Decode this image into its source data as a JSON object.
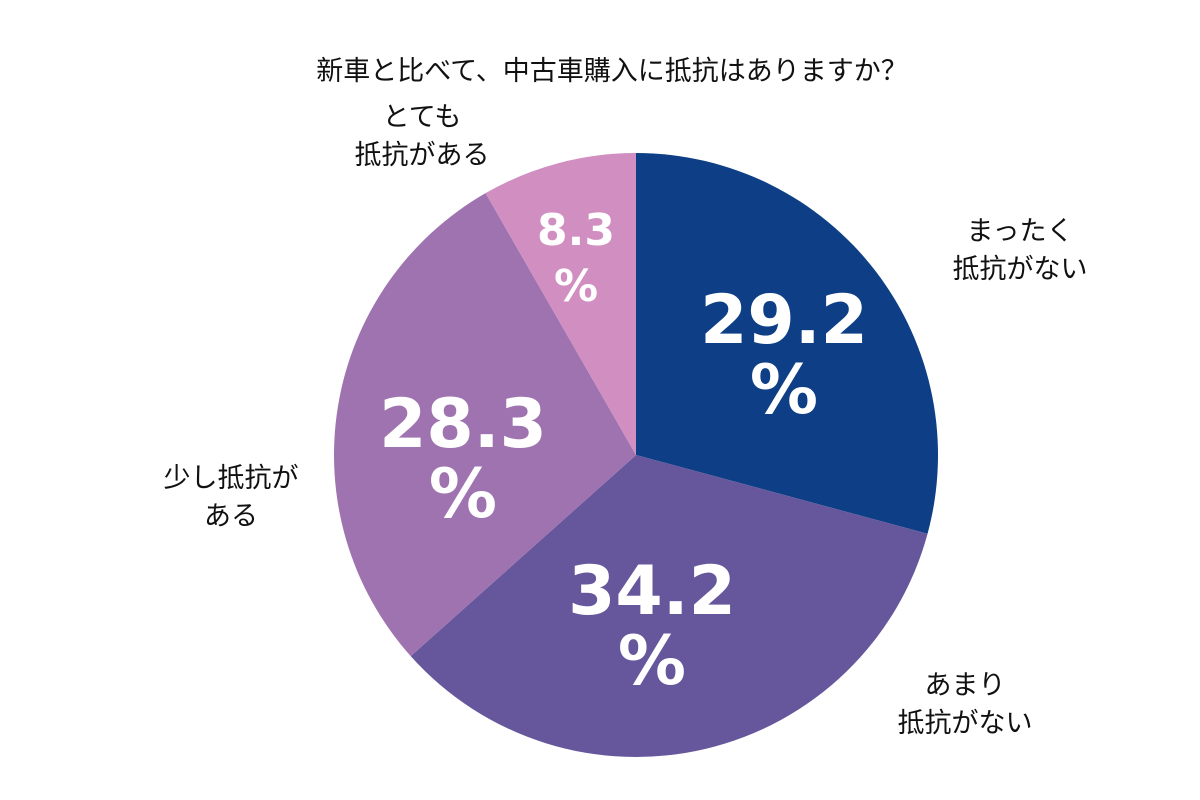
{
  "chart_data": {
    "type": "pie",
    "title": "新車と比べて、中古車購入に抵抗はありますか？",
    "start_angle_deg": 0,
    "direction": "clockwise",
    "slices": [
      {
        "label_lines": [
          "まったく",
          "抵抗がない"
        ],
        "value": 29.2,
        "value_text": "29.2",
        "unit": "%",
        "color": "#0e3f86"
      },
      {
        "label_lines": [
          "あまり",
          "抵抗がない"
        ],
        "value": 34.2,
        "value_text": "34.2",
        "unit": "%",
        "color": "#66579c"
      },
      {
        "label_lines": [
          "少し抵抗が",
          "ある"
        ],
        "value": 28.3,
        "value_text": "28.3",
        "unit": "%",
        "color": "#9f73b0"
      },
      {
        "label_lines": [
          "とても",
          "抵抗がある"
        ],
        "value": 8.3,
        "value_text": "8.3",
        "unit": "%",
        "color": "#d18ec0"
      }
    ]
  }
}
